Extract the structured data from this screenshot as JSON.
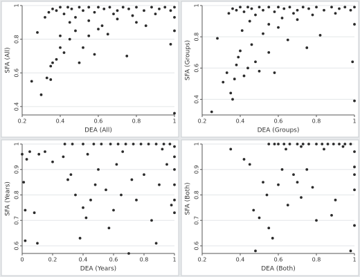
{
  "chart_data": [
    {
      "type": "scatter",
      "xlabel": "DEA (All)",
      "ylabel": "SFA (All)",
      "color": "#2b2b2b",
      "grid": true,
      "xlim": [
        0.2,
        1.0
      ],
      "ylim": [
        0.35,
        1.0
      ],
      "xticks": [
        0.2,
        0.4,
        0.6,
        0.8,
        1
      ],
      "yticks": [
        0.4,
        0.6,
        0.8,
        1
      ],
      "x": [
        0.25,
        0.3,
        0.28,
        0.33,
        0.35,
        0.35,
        0.36,
        0.38,
        0.4,
        0.42,
        0.45,
        0.48,
        0.5,
        0.52,
        0.55,
        0.58,
        0.62,
        0.65,
        0.7,
        0.75,
        0.8,
        0.85,
        0.98,
        1.0,
        1.0,
        0.34,
        0.36,
        0.38,
        0.4,
        0.42,
        0.44,
        0.46,
        0.48,
        0.5,
        0.52,
        0.55,
        0.58,
        0.6,
        0.63,
        0.66,
        0.7,
        0.73,
        0.76,
        0.8,
        0.84,
        0.88,
        0.92,
        0.95,
        0.98,
        1.0,
        1.0,
        0.45,
        0.55,
        0.6,
        0.4,
        0.68,
        0.78,
        0.9,
        0.32
      ],
      "values": [
        0.55,
        0.47,
        0.84,
        0.57,
        0.56,
        0.64,
        0.66,
        0.68,
        0.75,
        0.72,
        0.8,
        0.85,
        0.66,
        0.75,
        0.82,
        0.71,
        0.88,
        0.83,
        0.92,
        0.7,
        0.9,
        0.88,
        0.77,
        0.36,
        0.85,
        0.96,
        0.98,
        0.97,
        0.99,
        0.95,
        0.99,
        0.98,
        0.93,
        0.99,
        0.97,
        0.99,
        0.96,
        0.99,
        0.98,
        0.99,
        0.97,
        0.99,
        0.98,
        0.99,
        0.97,
        0.99,
        0.98,
        0.99,
        0.97,
        0.99,
        0.93,
        0.9,
        0.91,
        0.86,
        0.82,
        0.95,
        0.94,
        0.95,
        0.93
      ]
    },
    {
      "type": "scatter",
      "xlabel": "DEA (Groups)",
      "ylabel": "SFA (Groups)",
      "color": "#2b2b2b",
      "grid": true,
      "xlim": [
        0.2,
        1.0
      ],
      "ylim": [
        0.3,
        1.0
      ],
      "xticks": [
        0.2,
        0.4,
        0.6,
        0.8,
        1
      ],
      "yticks": [
        0.4,
        0.6,
        0.8,
        1
      ],
      "x": [
        0.25,
        0.28,
        0.31,
        0.33,
        0.35,
        0.36,
        0.37,
        0.38,
        0.39,
        0.4,
        0.42,
        0.44,
        0.46,
        0.48,
        0.5,
        0.52,
        0.55,
        0.58,
        0.6,
        0.65,
        0.7,
        0.75,
        0.82,
        0.99,
        1.0,
        1.0,
        0.34,
        0.36,
        0.38,
        0.4,
        0.42,
        0.44,
        0.46,
        0.48,
        0.5,
        0.52,
        0.55,
        0.58,
        0.6,
        0.63,
        0.66,
        0.7,
        0.73,
        0.76,
        0.8,
        0.84,
        0.88,
        0.92,
        0.95,
        0.98,
        1.0,
        0.45,
        0.55,
        0.62,
        0.41,
        0.68,
        0.78,
        0.9
      ],
      "values": [
        0.32,
        0.79,
        0.51,
        0.57,
        0.44,
        0.4,
        0.53,
        0.62,
        0.67,
        0.71,
        0.55,
        0.6,
        0.75,
        0.64,
        0.58,
        0.82,
        0.7,
        0.57,
        0.86,
        0.78,
        0.91,
        0.73,
        0.81,
        0.64,
        0.39,
        0.88,
        0.95,
        0.98,
        0.97,
        0.99,
        0.96,
        0.99,
        0.98,
        0.94,
        0.99,
        0.97,
        0.99,
        0.96,
        0.99,
        0.98,
        0.99,
        0.97,
        0.99,
        0.98,
        0.99,
        0.97,
        0.99,
        0.98,
        0.99,
        0.97,
        0.99,
        0.9,
        0.88,
        0.92,
        0.84,
        0.95,
        0.94,
        0.95
      ]
    },
    {
      "type": "scatter",
      "xlabel": "DEA (Years)",
      "ylabel": "SFA (Years)",
      "color": "#2b2b2b",
      "grid": true,
      "xlim": [
        0.0,
        1.0
      ],
      "ylim": [
        0.57,
        1.0
      ],
      "xticks": [
        0,
        0.2,
        0.4,
        0.6,
        0.8,
        1
      ],
      "yticks": [
        0.6,
        0.7,
        0.8,
        0.9,
        1
      ],
      "x": [
        0.0,
        0.01,
        0.02,
        0.02,
        0.03,
        0.05,
        0.08,
        0.1,
        0.11,
        0.15,
        0.2,
        0.27,
        0.3,
        0.32,
        0.35,
        0.38,
        0.4,
        0.42,
        0.45,
        0.48,
        0.5,
        0.55,
        0.57,
        0.6,
        0.62,
        0.65,
        0.7,
        0.72,
        0.75,
        0.8,
        0.85,
        0.88,
        0.9,
        0.95,
        0.98,
        1.0,
        1.0,
        1.0,
        1.0,
        1.0,
        1.0,
        0.28,
        0.33,
        0.4,
        0.47,
        0.52,
        0.58,
        0.63,
        0.68,
        0.73,
        0.78,
        0.83,
        0.88,
        0.93,
        0.97,
        0.43,
        0.66,
        0.92
      ],
      "values": [
        0.96,
        0.85,
        0.74,
        0.62,
        0.94,
        0.97,
        0.73,
        0.61,
        0.96,
        0.97,
        0.93,
        0.95,
        0.86,
        0.88,
        0.8,
        0.63,
        0.75,
        0.71,
        0.78,
        0.84,
        0.9,
        0.82,
        0.67,
        0.74,
        0.92,
        0.8,
        0.57,
        0.86,
        0.78,
        0.88,
        0.7,
        0.61,
        0.84,
        0.92,
        0.76,
        0.99,
        0.95,
        0.9,
        0.84,
        0.78,
        0.73,
        1.0,
        1.0,
        1.0,
        1.0,
        1.0,
        1.0,
        1.0,
        1.0,
        1.0,
        1.0,
        1.0,
        1.0,
        1.0,
        1.0,
        0.96,
        0.97,
        0.98
      ]
    },
    {
      "type": "scatter",
      "xlabel": "DEA (Both)",
      "ylabel": "SFA (Both)",
      "color": "#2b2b2b",
      "grid": true,
      "xlim": [
        0.2,
        1.0
      ],
      "ylim": [
        0.57,
        1.0
      ],
      "xticks": [
        0.2,
        0.4,
        0.6,
        0.8,
        1
      ],
      "yticks": [
        0.6,
        0.7,
        0.8,
        0.9,
        1
      ],
      "x": [
        0.35,
        0.42,
        0.45,
        0.47,
        0.48,
        0.5,
        0.52,
        0.54,
        0.55,
        0.57,
        0.6,
        0.62,
        0.65,
        0.68,
        0.7,
        0.72,
        0.75,
        0.78,
        0.8,
        0.88,
        0.9,
        0.98,
        1.0,
        1.0,
        1.0,
        1.0,
        1.0,
        0.55,
        0.58,
        0.6,
        0.63,
        0.66,
        0.7,
        0.73,
        0.76,
        0.8,
        0.83,
        0.86,
        0.89,
        0.92,
        0.95,
        0.98,
        0.64,
        0.72,
        0.84,
        0.94
      ],
      "values": [
        0.98,
        0.94,
        0.92,
        0.74,
        0.58,
        0.71,
        0.85,
        0.8,
        0.67,
        0.63,
        0.84,
        0.9,
        0.76,
        0.88,
        0.85,
        0.79,
        0.9,
        0.83,
        0.7,
        0.72,
        0.78,
        0.58,
        0.68,
        0.88,
        0.82,
        0.91,
        0.97,
        1.0,
        1.0,
        1.0,
        1.0,
        1.0,
        1.0,
        1.0,
        1.0,
        1.0,
        1.0,
        1.0,
        1.0,
        1.0,
        1.0,
        1.0,
        0.98,
        0.99,
        0.98,
        0.99
      ]
    }
  ]
}
